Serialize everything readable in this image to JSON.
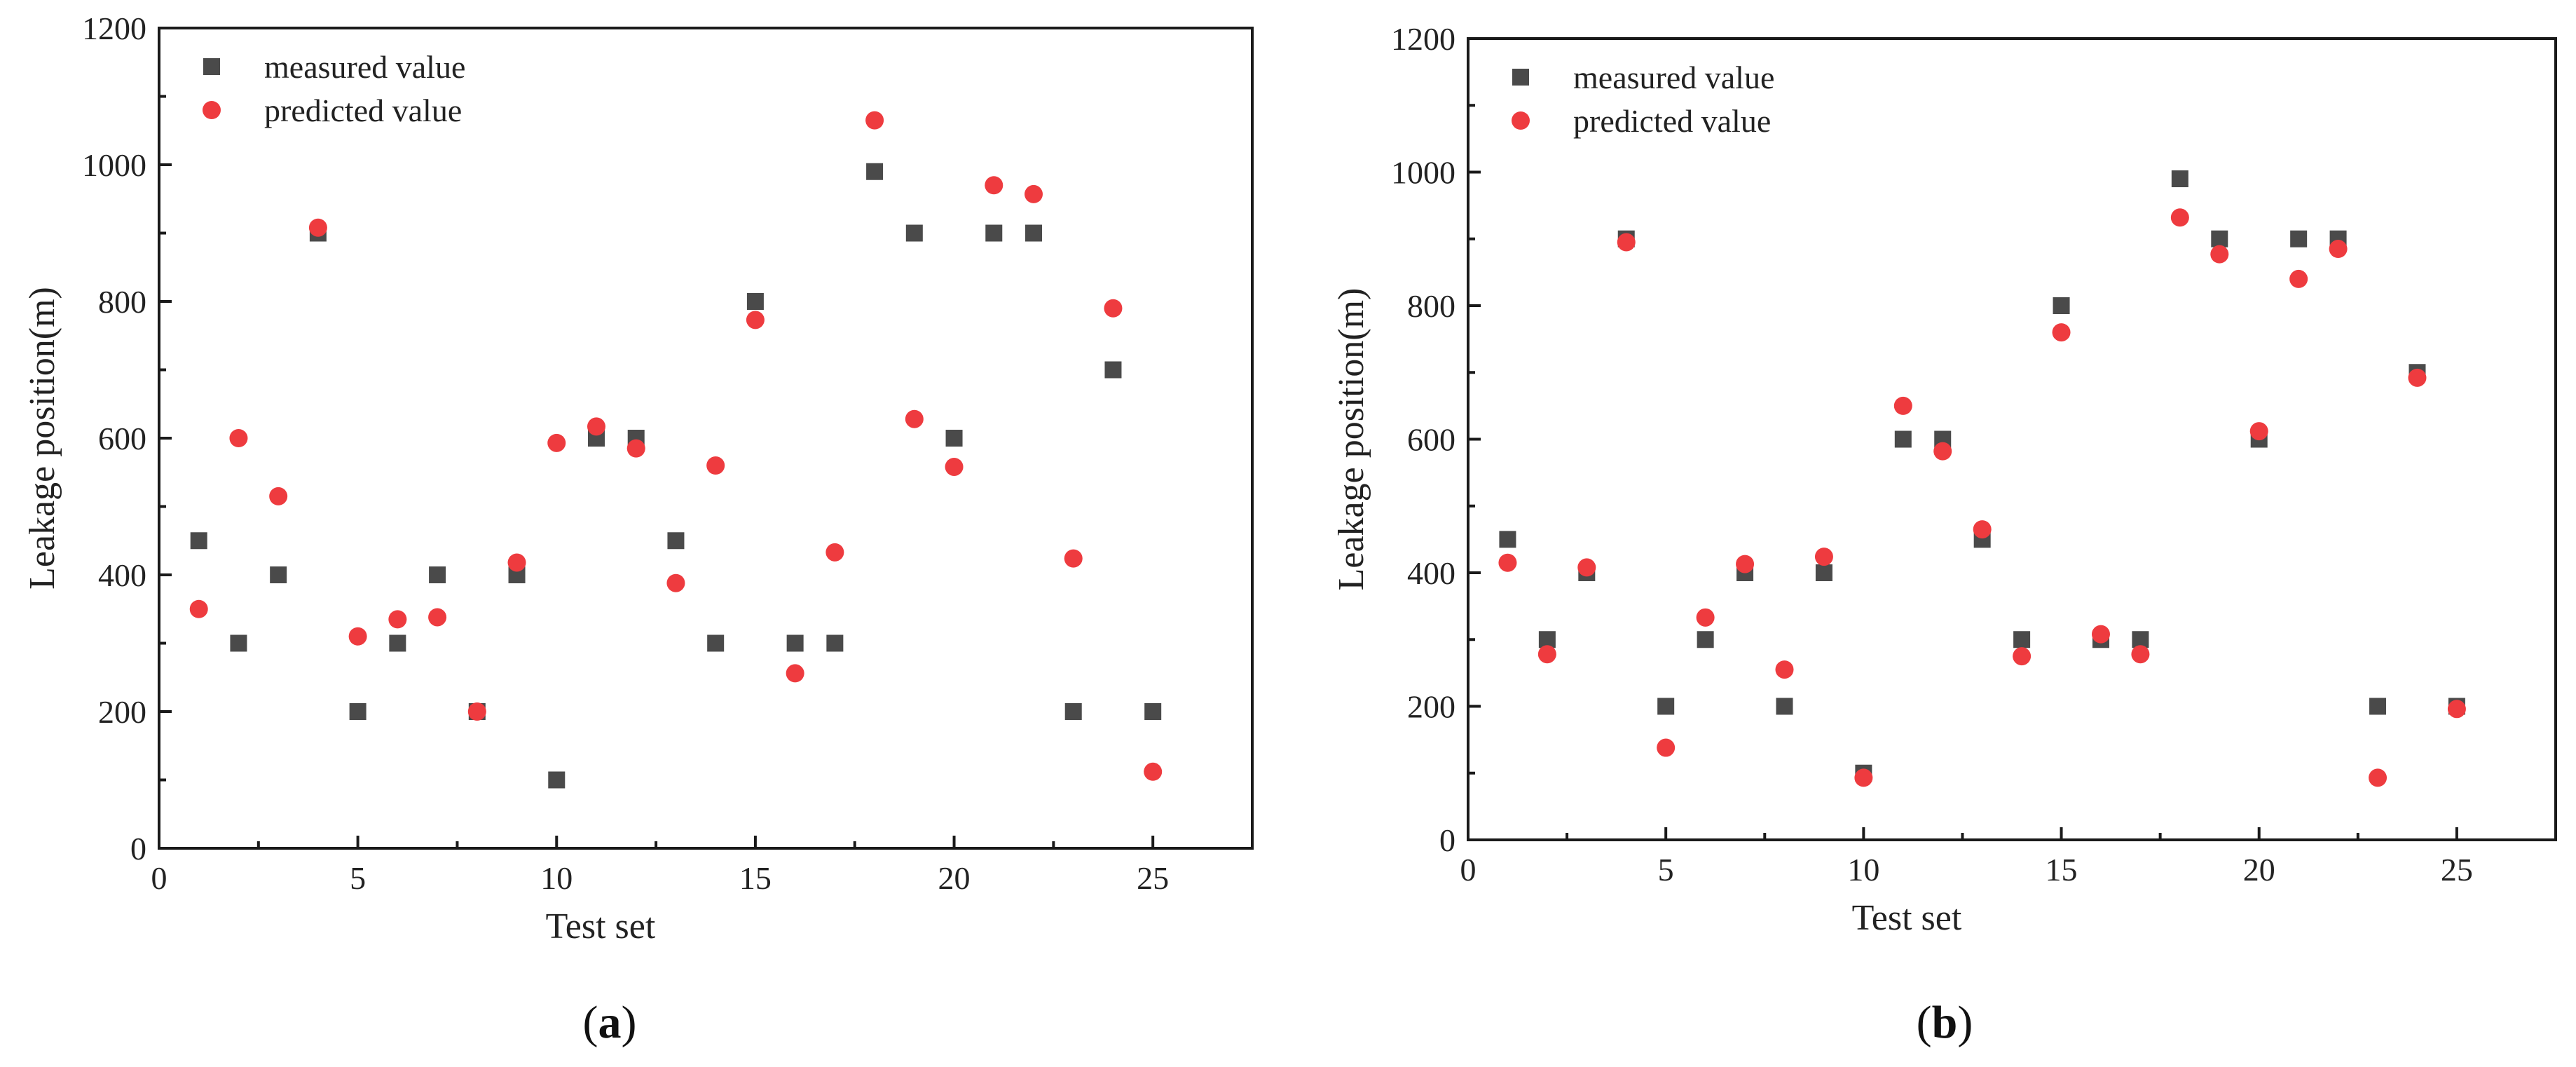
{
  "colors": {
    "measured": "#4a4a4a",
    "predicted": "#ee3b3f",
    "axis": "#1a1a1a"
  },
  "chart_data": [
    {
      "type": "scatter",
      "panel_label_open": "(",
      "panel_label_letter": "a",
      "panel_label_close": ")",
      "xlabel": "Test set",
      "ylabel": "Leakage position(m)",
      "xlim": [
        0,
        27.5
      ],
      "ylim": [
        0,
        1200
      ],
      "xticks": [
        0,
        5,
        10,
        15,
        20,
        25
      ],
      "yticks": [
        0,
        200,
        400,
        600,
        800,
        1000,
        1200
      ],
      "legend_position": "top-left",
      "series": [
        {
          "name": "measured value",
          "marker": "square",
          "x": [
            1,
            2,
            3,
            4,
            5,
            6,
            7,
            8,
            9,
            10,
            11,
            12,
            13,
            14,
            15,
            16,
            17,
            18,
            19,
            20,
            21,
            22,
            23,
            24,
            25
          ],
          "y": [
            450,
            300,
            400,
            900,
            200,
            300,
            400,
            200,
            400,
            100,
            600,
            600,
            450,
            300,
            800,
            300,
            300,
            990,
            900,
            600,
            900,
            900,
            200,
            700,
            200
          ]
        },
        {
          "name": "predicted value",
          "marker": "circle",
          "x": [
            1,
            2,
            3,
            4,
            5,
            6,
            7,
            8,
            9,
            10,
            11,
            12,
            13,
            14,
            15,
            16,
            17,
            18,
            19,
            20,
            21,
            22,
            23,
            24,
            25
          ],
          "y": [
            350,
            600,
            515,
            908,
            310,
            335,
            338,
            200,
            418,
            593,
            617,
            585,
            388,
            560,
            773,
            256,
            433,
            1065,
            628,
            558,
            970,
            957,
            424,
            790,
            112
          ]
        }
      ]
    },
    {
      "type": "scatter",
      "panel_label_open": "(",
      "panel_label_letter": "b",
      "panel_label_close": ")",
      "xlabel": "Test set",
      "ylabel": "Leakage position(m)",
      "xlim": [
        0,
        27.5
      ],
      "ylim": [
        0,
        1200
      ],
      "xticks": [
        0,
        5,
        10,
        15,
        20,
        25
      ],
      "yticks": [
        0,
        200,
        400,
        600,
        800,
        1000,
        1200
      ],
      "legend_position": "top-left",
      "series": [
        {
          "name": "measured value",
          "marker": "square",
          "x": [
            1,
            2,
            3,
            4,
            5,
            6,
            7,
            8,
            9,
            10,
            11,
            12,
            13,
            14,
            15,
            16,
            17,
            18,
            19,
            20,
            21,
            22,
            23,
            24,
            25
          ],
          "y": [
            450,
            300,
            400,
            900,
            200,
            300,
            400,
            200,
            400,
            100,
            600,
            600,
            450,
            300,
            800,
            300,
            300,
            990,
            900,
            600,
            900,
            900,
            200,
            700,
            200
          ]
        },
        {
          "name": "predicted value",
          "marker": "circle",
          "x": [
            1,
            2,
            3,
            4,
            5,
            6,
            7,
            8,
            9,
            10,
            11,
            12,
            13,
            14,
            15,
            16,
            17,
            18,
            19,
            20,
            21,
            22,
            23,
            24,
            25
          ],
          "y": [
            415,
            278,
            408,
            895,
            138,
            333,
            413,
            255,
            424,
            93,
            650,
            582,
            465,
            275,
            760,
            308,
            278,
            932,
            877,
            612,
            840,
            885,
            93,
            692,
            196
          ]
        }
      ]
    }
  ]
}
